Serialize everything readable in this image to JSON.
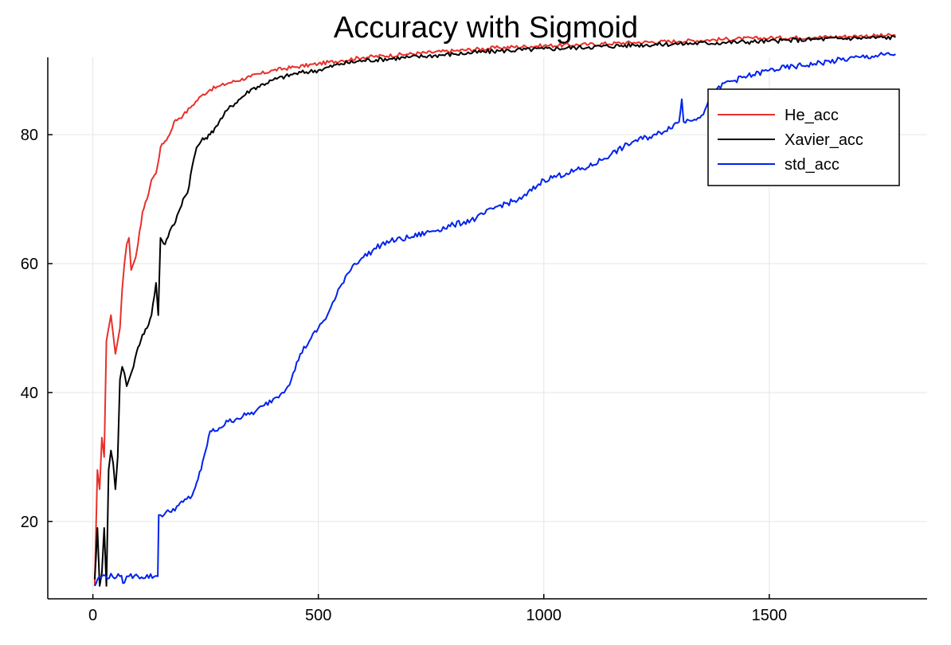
{
  "chart_data": {
    "type": "line",
    "title": "Accuracy with Sigmoid",
    "xlabel": "",
    "ylabel": "",
    "xlim": [
      -100,
      1850
    ],
    "ylim": [
      8,
      92
    ],
    "x_ticks": [
      0,
      500,
      1000,
      1500
    ],
    "y_ticks": [
      20,
      40,
      60,
      80
    ],
    "x_tick_labels": [
      "0",
      "500",
      "1000",
      "1500"
    ],
    "y_tick_labels": [
      "20",
      "40",
      "60",
      "80"
    ],
    "grid": true,
    "legend_position": "top-right",
    "series": [
      {
        "name": "He_acc",
        "color": "#e8302a",
        "x": [
          4,
          10,
          15,
          20,
          25,
          30,
          35,
          40,
          45,
          50,
          55,
          60,
          65,
          70,
          75,
          80,
          85,
          90,
          95,
          100,
          110,
          120,
          130,
          140,
          150,
          160,
          170,
          180,
          190,
          200,
          220,
          240,
          260,
          280,
          300,
          350,
          400,
          450,
          500,
          550,
          600,
          700,
          800,
          900,
          1000,
          1100,
          1200,
          1300,
          1400,
          1500,
          1600,
          1700,
          1780
        ],
        "y": [
          10,
          28,
          25,
          33,
          30,
          48,
          50,
          52,
          49,
          46,
          48,
          50,
          56,
          60,
          63,
          64,
          59,
          60,
          61,
          63,
          68,
          70,
          73,
          74,
          78,
          79,
          80,
          82,
          82.5,
          83,
          84.5,
          86,
          87,
          87.5,
          88,
          89,
          90,
          90.5,
          91,
          91.5,
          92,
          92.5,
          93,
          93.5,
          93.8,
          94,
          94.3,
          94.5,
          94.8,
          95,
          95.1,
          95.3,
          95.4
        ]
      },
      {
        "name": "Xavier_acc",
        "color": "#000000",
        "x": [
          4,
          10,
          15,
          20,
          25,
          30,
          35,
          40,
          45,
          50,
          55,
          60,
          65,
          70,
          75,
          80,
          85,
          90,
          100,
          110,
          120,
          130,
          140,
          145,
          150,
          160,
          170,
          180,
          190,
          200,
          210,
          220,
          230,
          240,
          250,
          260,
          270,
          280,
          290,
          300,
          350,
          400,
          450,
          500,
          550,
          600,
          700,
          800,
          900,
          1000,
          1100,
          1200,
          1300,
          1400,
          1500,
          1600,
          1700,
          1780
        ],
        "y": [
          11,
          19,
          10,
          12,
          19,
          10,
          28,
          31,
          29,
          25,
          30,
          42,
          44,
          43,
          41,
          42,
          43,
          44,
          47,
          49,
          50,
          52,
          57,
          52,
          64,
          63,
          65,
          66,
          68,
          70,
          71,
          75,
          78,
          79,
          79.5,
          80,
          81,
          82,
          83,
          84,
          87,
          88.5,
          89.5,
          90,
          91,
          91.5,
          92,
          92.5,
          93,
          93.3,
          93.6,
          93.9,
          94.1,
          94.3,
          94.5,
          94.8,
          95,
          95.1
        ]
      },
      {
        "name": "std_acc",
        "color": "#0022ee",
        "x": [
          4,
          10,
          20,
          60,
          70,
          75,
          80,
          100,
          144,
          146,
          150,
          170,
          190,
          200,
          220,
          230,
          240,
          250,
          260,
          270,
          280,
          300,
          320,
          340,
          360,
          380,
          400,
          420,
          440,
          460,
          480,
          500,
          520,
          540,
          560,
          580,
          600,
          620,
          640,
          660,
          700,
          750,
          800,
          850,
          900,
          950,
          1000,
          1050,
          1100,
          1150,
          1200,
          1250,
          1300,
          1306,
          1310,
          1350,
          1380,
          1400,
          1500,
          1600,
          1700,
          1780
        ],
        "y": [
          10,
          11,
          11.5,
          11.5,
          10.5,
          11.5,
          11.5,
          11.5,
          11.5,
          21,
          21,
          21.5,
          22.5,
          23,
          24,
          26,
          28,
          31,
          34,
          34,
          34.5,
          35.5,
          36,
          36.5,
          37,
          38,
          39,
          40,
          42,
          46,
          48,
          50,
          52,
          55,
          58,
          60,
          61,
          62,
          63,
          63.5,
          64,
          65,
          66,
          67,
          69,
          70,
          73,
          74,
          75,
          77,
          79,
          80,
          82,
          85.5,
          82,
          83,
          86.5,
          88,
          90,
          91,
          92,
          92.5
        ]
      }
    ]
  }
}
